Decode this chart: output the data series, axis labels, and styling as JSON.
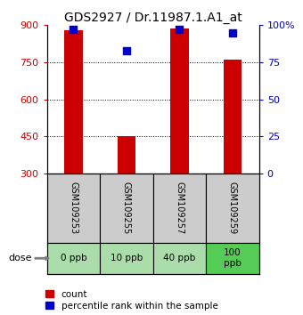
{
  "title": "GDS2927 / Dr.11987.1.A1_at",
  "samples": [
    "GSM109253",
    "GSM109255",
    "GSM109257",
    "GSM109259"
  ],
  "doses": [
    "0 ppb",
    "10 ppb",
    "40 ppb",
    "100\nppb"
  ],
  "bar_values": [
    880,
    450,
    885,
    760
  ],
  "bar_base": 300,
  "percentile_values": [
    97,
    83,
    97,
    95
  ],
  "ylim_left": [
    300,
    900
  ],
  "ylim_right": [
    0,
    100
  ],
  "yticks_left": [
    300,
    450,
    600,
    750,
    900
  ],
  "yticks_right": [
    0,
    25,
    50,
    75,
    100
  ],
  "ytick_labels_right": [
    "0",
    "25",
    "50",
    "75",
    "100%"
  ],
  "bar_color": "#cc0000",
  "dot_color": "#0000cc",
  "dot_size": 30,
  "sample_bg_color": "#cccccc",
  "dose_bg_color_light": "#aaddaa",
  "dose_bg_color_dark": "#55cc55",
  "title_fontsize": 10,
  "tick_fontsize": 8,
  "legend_fontsize": 7.5,
  "sample_label_fontsize": 7,
  "dose_fontsize": 7.5
}
